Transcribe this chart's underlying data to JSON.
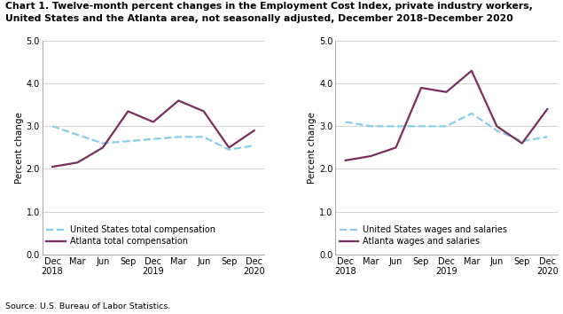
{
  "title_line1": "Chart 1. Twelve-month percent changes in the Employment Cost Index, private industry workers,",
  "title_line2": "United States and the Atlanta area, not seasonally adjusted, December 2018–December 2020",
  "source": "Source: U.S. Bureau of Labor Statistics.",
  "x_labels": [
    "Dec\n2018",
    "Mar",
    "Jun",
    "Sep",
    "Dec\n2019",
    "Mar",
    "Jun",
    "Sep",
    "Dec\n2020"
  ],
  "ylabel": "Percent change",
  "ylim": [
    0.0,
    5.0
  ],
  "yticks": [
    0.0,
    1.0,
    2.0,
    3.0,
    4.0,
    5.0
  ],
  "chart1": {
    "us_total_comp": [
      3.0,
      2.8,
      2.6,
      2.65,
      2.7,
      2.75,
      2.75,
      2.45,
      2.55
    ],
    "atlanta_total_comp": [
      2.05,
      2.15,
      2.5,
      3.35,
      3.1,
      3.6,
      3.35,
      2.5,
      2.9
    ],
    "legend_us": "United States total compensation",
    "legend_atlanta": "Atlanta total compensation"
  },
  "chart2": {
    "us_wages_salaries": [
      3.1,
      3.0,
      3.0,
      3.0,
      3.0,
      3.3,
      2.9,
      2.65,
      2.75
    ],
    "atlanta_wages_salaries": [
      2.2,
      2.3,
      2.5,
      3.9,
      3.8,
      4.3,
      3.0,
      2.6,
      3.4
    ],
    "legend_us": "United States wages and salaries",
    "legend_atlanta": "Atlanta wages and salaries"
  },
  "us_color": "#87CEEB",
  "atlanta_color": "#7B2D5E",
  "us_linestyle": "--",
  "atlanta_linestyle": "-",
  "linewidth": 1.6,
  "title_fontsize": 7.8,
  "label_fontsize": 7.5,
  "tick_fontsize": 7.0,
  "legend_fontsize": 7.0,
  "source_fontsize": 6.8
}
